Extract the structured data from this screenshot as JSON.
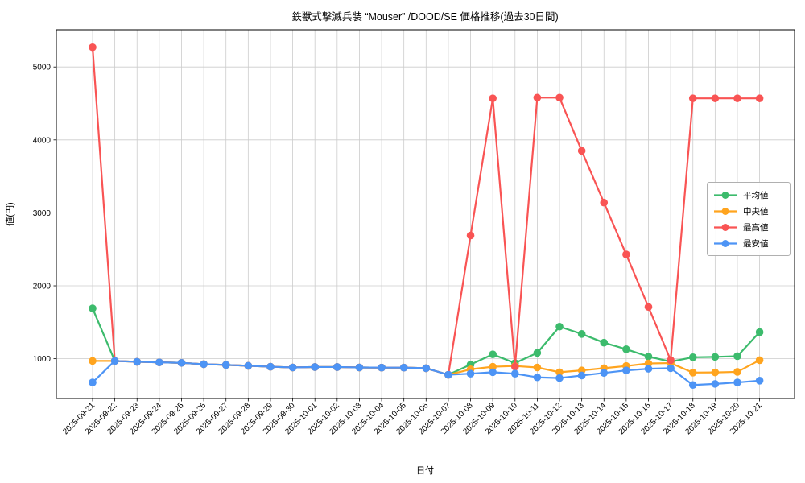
{
  "title": "鉄獣式撃滅兵装 “Mouser” /DOOD/SE 価格推移(過去30日間)",
  "chart_data": {
    "type": "line",
    "title": "鉄獣式撃滅兵装 “Mouser” /DOOD/SE 価格推移(過去30日間)",
    "xlabel": "日付",
    "ylabel": "値(円)",
    "grid": true,
    "legend_position": "right",
    "background": "#ffffff",
    "grid_color": "#cccccc",
    "yticks": [
      1000,
      2000,
      3000,
      4000,
      5000
    ],
    "ylim": [
      455,
      5510
    ],
    "x": [
      "2025-09-21",
      "2025-09-22",
      "2025-09-23",
      "2025-09-24",
      "2025-09-25",
      "2025-09-26",
      "2025-09-27",
      "2025-09-28",
      "2025-09-29",
      "2025-09-30",
      "2025-10-01",
      "2025-10-02",
      "2025-10-03",
      "2025-10-04",
      "2025-10-05",
      "2025-10-06",
      "2025-10-07",
      "2025-10-08",
      "2025-10-09",
      "2025-10-10",
      "2025-10-11",
      "2025-10-12",
      "2025-10-13",
      "2025-10-14",
      "2025-10-15",
      "2025-10-16",
      "2025-10-17",
      "2025-10-18",
      "2025-10-19",
      "2025-10-20",
      "2025-10-21"
    ],
    "series": [
      {
        "name": "平均値",
        "color": "#3cbb6c",
        "values": [
          1690,
          970,
          958,
          950,
          943,
          925,
          915,
          903,
          890,
          880,
          886,
          886,
          880,
          878,
          878,
          870,
          780,
          920,
          1060,
          940,
          1080,
          1440,
          1340,
          1220,
          1130,
          1030,
          960,
          1020,
          1025,
          1035,
          1365
        ]
      },
      {
        "name": "中央値",
        "color": "#ffa41e",
        "values": [
          970,
          970,
          958,
          950,
          943,
          925,
          915,
          903,
          890,
          880,
          886,
          886,
          880,
          878,
          878,
          870,
          780,
          855,
          890,
          900,
          880,
          815,
          840,
          870,
          900,
          935,
          940,
          810,
          812,
          820,
          980
        ]
      },
      {
        "name": "最高値",
        "color": "#f95454",
        "values": [
          5270,
          970,
          958,
          950,
          943,
          925,
          915,
          903,
          890,
          880,
          886,
          886,
          880,
          878,
          878,
          870,
          780,
          2690,
          4570,
          890,
          4580,
          4580,
          3850,
          3140,
          2430,
          1710,
          980,
          4570,
          4570,
          4570,
          4570
        ]
      },
      {
        "name": "最安値",
        "color": "#4d94f5",
        "values": [
          675,
          970,
          958,
          950,
          943,
          925,
          915,
          903,
          890,
          880,
          886,
          886,
          880,
          878,
          878,
          870,
          780,
          795,
          815,
          795,
          745,
          735,
          770,
          805,
          840,
          862,
          870,
          640,
          655,
          675,
          700
        ]
      }
    ]
  }
}
